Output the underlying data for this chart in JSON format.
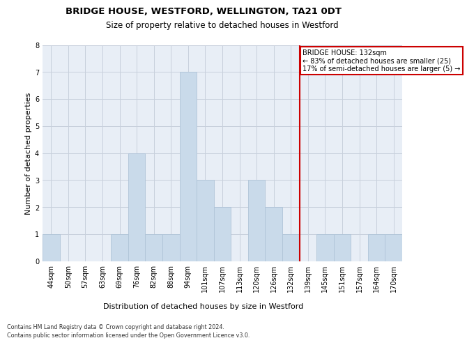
{
  "title": "BRIDGE HOUSE, WESTFORD, WELLINGTON, TA21 0DT",
  "subtitle": "Size of property relative to detached houses in Westford",
  "xlabel_bottom": "Distribution of detached houses by size in Westford",
  "ylabel": "Number of detached properties",
  "footnote1": "Contains HM Land Registry data © Crown copyright and database right 2024.",
  "footnote2": "Contains public sector information licensed under the Open Government Licence v3.0.",
  "categories": [
    "44sqm",
    "50sqm",
    "57sqm",
    "63sqm",
    "69sqm",
    "76sqm",
    "82sqm",
    "88sqm",
    "94sqm",
    "101sqm",
    "107sqm",
    "113sqm",
    "120sqm",
    "126sqm",
    "132sqm",
    "139sqm",
    "145sqm",
    "151sqm",
    "157sqm",
    "164sqm",
    "170sqm"
  ],
  "values": [
    1,
    0,
    0,
    0,
    1,
    4,
    1,
    1,
    7,
    3,
    2,
    0,
    3,
    2,
    1,
    0,
    1,
    1,
    0,
    1,
    1
  ],
  "bar_color": "#c9daea",
  "bar_edgecolor": "#b0c4d8",
  "marker_index": 14,
  "marker_color": "#cc0000",
  "annotation_text": "BRIDGE HOUSE: 132sqm\n← 83% of detached houses are smaller (25)\n17% of semi-detached houses are larger (5) →",
  "annotation_box_facecolor": "#ffffff",
  "annotation_box_edgecolor": "#cc0000",
  "ylim": [
    0,
    8
  ],
  "yticks": [
    0,
    1,
    2,
    3,
    4,
    5,
    6,
    7,
    8
  ],
  "background_color": "#ffffff",
  "plot_bg_color": "#e8eef6",
  "grid_color": "#c8d0dc",
  "title_fontsize": 9.5,
  "subtitle_fontsize": 8.5,
  "ylabel_fontsize": 8,
  "tick_fontsize": 7,
  "annot_fontsize": 7,
  "xlabel_bottom_fontsize": 8,
  "footnote_fontsize": 5.8
}
